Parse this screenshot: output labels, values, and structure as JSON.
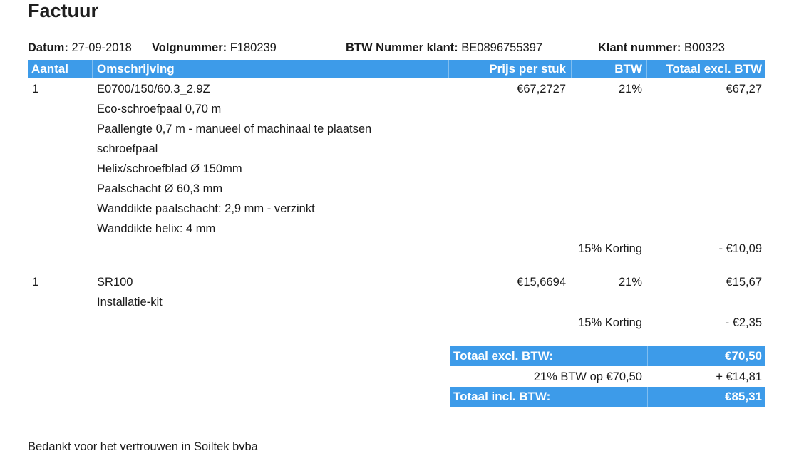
{
  "title": "Factuur",
  "meta": {
    "datum_label": "Datum:",
    "datum_value": "27-09-2018",
    "volg_label": "Volgnummer:",
    "volg_value": "F180239",
    "btw_label": "BTW Nummer klant:",
    "btw_value": "BE0896755397",
    "klant_label": "Klant nummer:",
    "klant_value": "B00323"
  },
  "table": {
    "headers": {
      "aantal": "Aantal",
      "omschrijving": "Omschrijving",
      "prijs": "Prijs per stuk",
      "btw": "BTW",
      "totaal": "Totaal excl. BTW"
    },
    "items": [
      {
        "aantal": "1",
        "lines": [
          "E0700/150/60.3_2.9Z",
          "Eco-schroefpaal 0,70 m",
          "Paallengte 0,7 m - manueel of machinaal te plaatsen",
          "schroefpaal",
          "Helix/schroefblad Ø 150mm",
          "Paalschacht Ø 60,3 mm",
          "Wanddikte paalschacht: 2,9 mm - verzinkt",
          "Wanddikte helix: 4 mm"
        ],
        "prijs": "€67,2727",
        "btw": "21%",
        "totaal": "€67,27",
        "korting_label": "15% Korting",
        "korting_value": "- €10,09"
      },
      {
        "aantal": "1",
        "lines": [
          "SR100",
          "Installatie-kit"
        ],
        "prijs": "€15,6694",
        "btw": "21%",
        "totaal": "€15,67",
        "korting_label": "15% Korting",
        "korting_value": "- €2,35"
      }
    ]
  },
  "totals": {
    "excl_label": "Totaal excl. BTW:",
    "excl_value": "€70,50",
    "btw_label": "21% BTW op €70,50",
    "btw_value": "+ €14,81",
    "incl_label": "Totaal incl. BTW:",
    "incl_value": "€85,31"
  },
  "footer": "Bedankt voor het vertrouwen in Soiltek bvba",
  "colors": {
    "accent": "#3d9be9"
  }
}
